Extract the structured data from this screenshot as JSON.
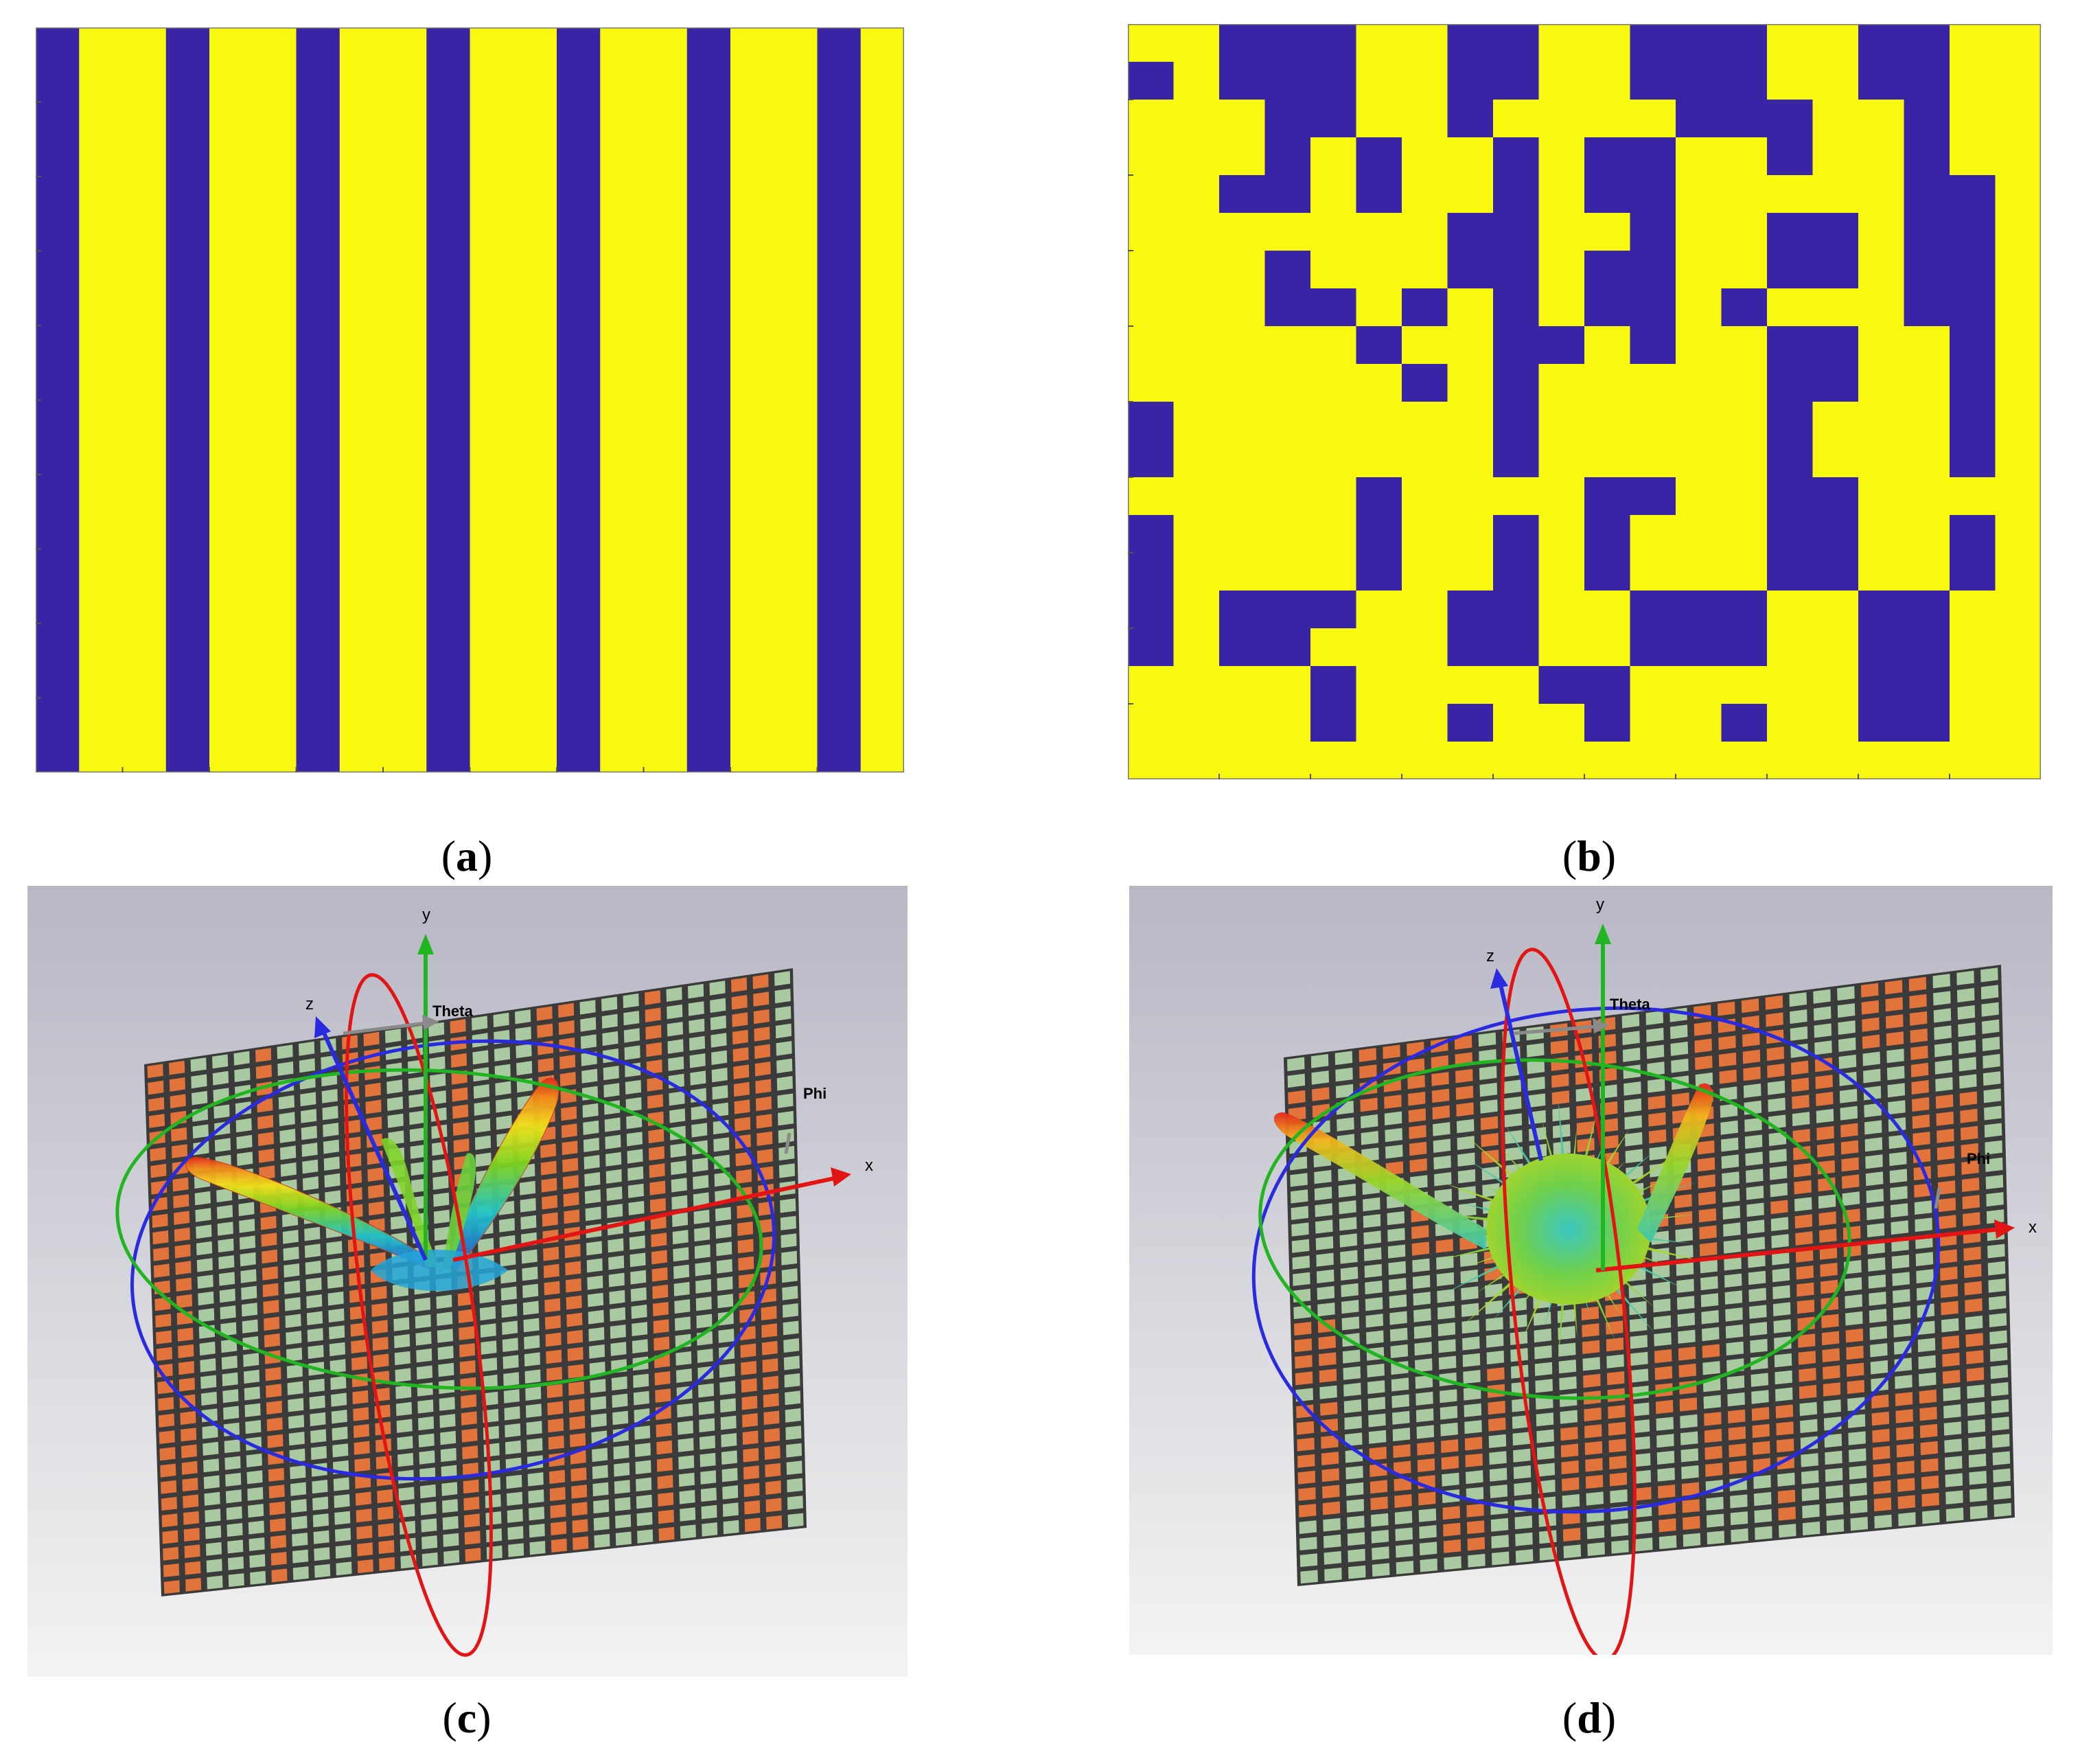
{
  "colors": {
    "blue": "#3a24a6",
    "yellow": "#f9f90f",
    "copper": "#e2733a",
    "cell_green": "#a9c9a0",
    "grid_line": "#3b3b3b",
    "bg_top": "#b8b8c6",
    "bg_bottom": "#f2f2f2"
  },
  "panel_a": {
    "caption_letter": "a",
    "cols": 20,
    "rows": 1,
    "pattern": [
      "1",
      "0",
      "0",
      "1",
      "0",
      "0",
      "1",
      "0",
      "0",
      "1",
      "0",
      "0",
      "1",
      "0",
      "0",
      "1",
      "0",
      "0",
      "1",
      "0"
    ]
  },
  "panel_b": {
    "caption_letter": "b",
    "cols": 20,
    "rows": 20,
    "pattern": [
      "00111001100111001100",
      "10111001100111001100",
      "00011001000011100100",
      "00010100101100100100",
      "00110100101100000110",
      "00000001100100110110",
      "00010001101100110110",
      "00011010101101000110",
      "00000100110100110010",
      "00000010100000110010",
      "10000000100000100010",
      "10000000100000100010",
      "00000100001100110000",
      "10000100101000110010",
      "10000100101000110010",
      "10111001100111001100",
      "10110001100111001100",
      "00001000011000001100",
      "00001001001001001100",
      "00000000000000000000"
    ]
  },
  "panel_c": {
    "caption_letter": "c",
    "axis_labels": {
      "x": "x",
      "y": "y",
      "z": "z",
      "theta": "Theta",
      "phi": "Phi"
    }
  },
  "panel_d": {
    "caption_letter": "d",
    "axis_labels": {
      "x": "x",
      "y": "y",
      "z": "z",
      "theta": "Theta",
      "phi": "Phi"
    }
  }
}
